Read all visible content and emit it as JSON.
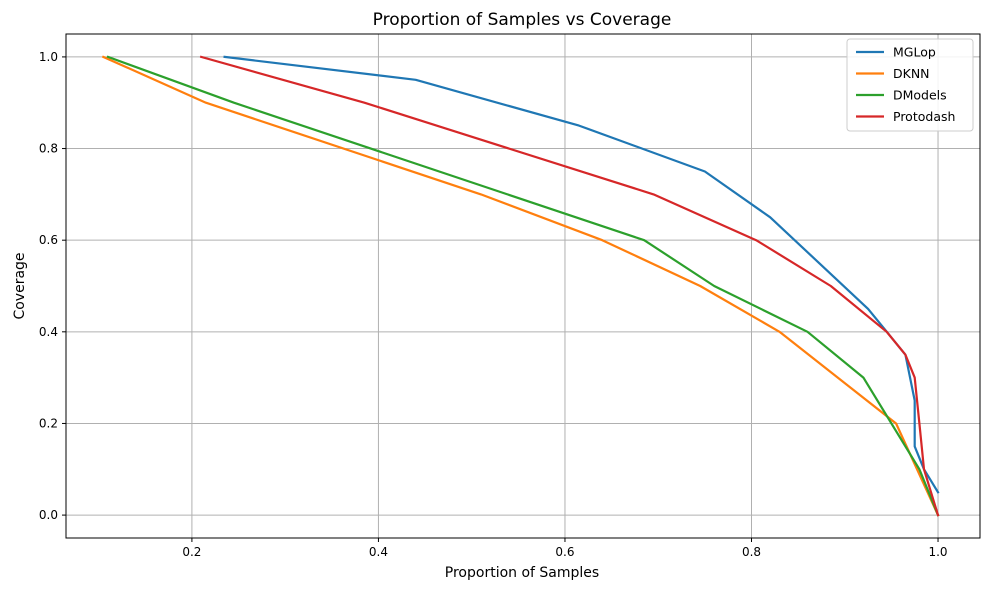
{
  "chart_data": {
    "type": "line",
    "title": "Proportion of Samples vs Coverage",
    "xlabel": "Proportion of Samples",
    "ylabel": "Coverage",
    "xlim": [
      0.065,
      1.045
    ],
    "ylim": [
      -0.05,
      1.05
    ],
    "xticks": [
      0.2,
      0.4,
      0.6,
      0.8,
      1.0
    ],
    "xtick_labels": [
      "0.2",
      "0.4",
      "0.6",
      "0.8",
      "1.0"
    ],
    "yticks": [
      0.0,
      0.2,
      0.4,
      0.6,
      0.8,
      1.0
    ],
    "ytick_labels": [
      "0.0",
      "0.2",
      "0.4",
      "0.6",
      "0.8",
      "1.0"
    ],
    "grid": true,
    "legend_position": "top-right",
    "series": [
      {
        "name": "MGLop",
        "color": "#1f77b4",
        "x": [
          0.235,
          0.44,
          0.615,
          0.75,
          0.82,
          0.925,
          0.965,
          0.975,
          0.975,
          0.985,
          1.0
        ],
        "y": [
          1.0,
          0.95,
          0.85,
          0.75,
          0.65,
          0.45,
          0.35,
          0.25,
          0.15,
          0.1,
          0.05
        ]
      },
      {
        "name": "DKNN",
        "color": "#ff7f0e",
        "x": [
          0.105,
          0.215,
          0.51,
          0.64,
          0.745,
          0.83,
          0.955,
          1.0
        ],
        "y": [
          1.0,
          0.9,
          0.7,
          0.6,
          0.5,
          0.4,
          0.2,
          0.0
        ]
      },
      {
        "name": "DModels",
        "color": "#2ca02c",
        "x": [
          0.11,
          0.245,
          0.685,
          0.76,
          0.86,
          0.92,
          0.98,
          1.0
        ],
        "y": [
          1.0,
          0.9,
          0.6,
          0.5,
          0.4,
          0.3,
          0.1,
          0.0
        ]
      },
      {
        "name": "Protodash",
        "color": "#d62728",
        "x": [
          0.21,
          0.385,
          0.695,
          0.805,
          0.885,
          0.945,
          0.965,
          0.975,
          0.98,
          0.985,
          1.0
        ],
        "y": [
          1.0,
          0.9,
          0.7,
          0.6,
          0.5,
          0.4,
          0.35,
          0.3,
          0.2,
          0.1,
          0.0
        ]
      }
    ]
  }
}
